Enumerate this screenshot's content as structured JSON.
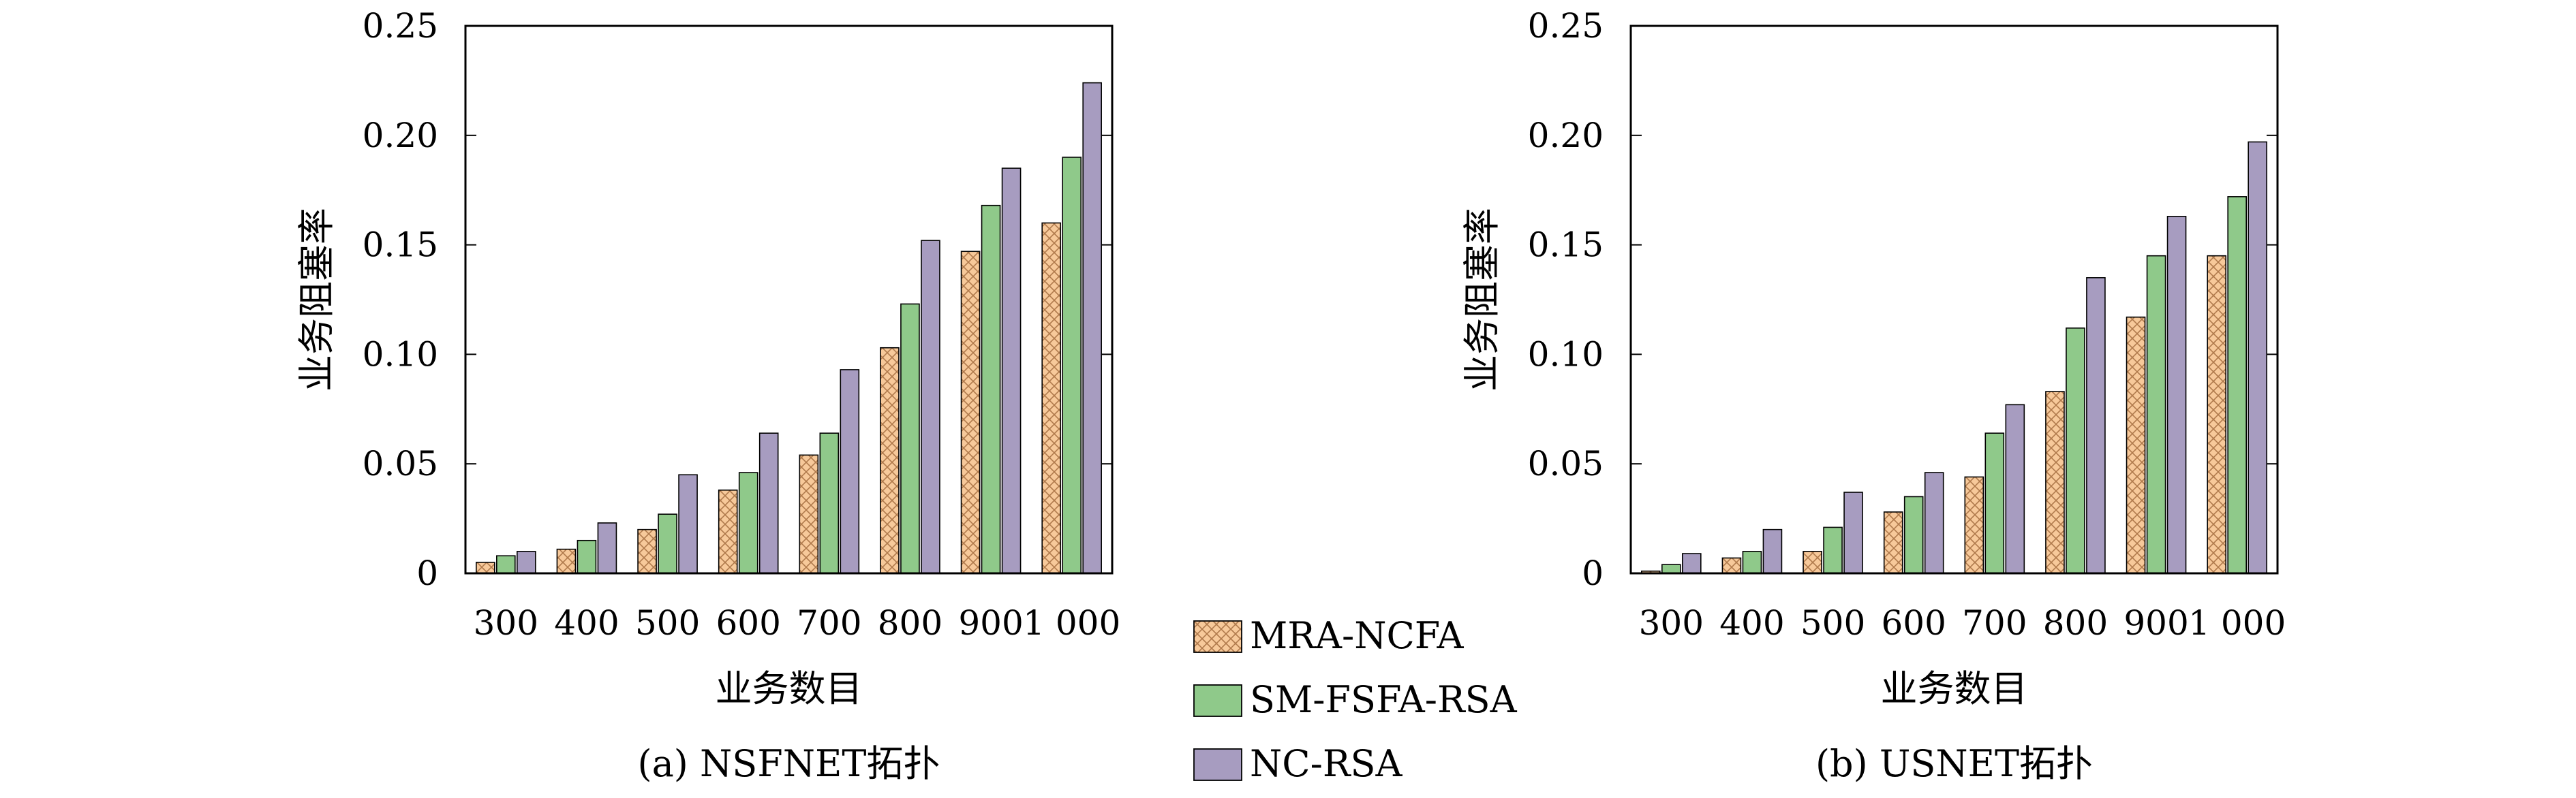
{
  "figure": {
    "legend": [
      {
        "name": "MRA-NCFA",
        "color": "#f7c99a",
        "pattern": "crosshatch"
      },
      {
        "name": "SM-FSFA-RSA",
        "color": "#8fc98a",
        "pattern": "solid"
      },
      {
        "name": "NC-RSA",
        "color": "#a79cc0",
        "pattern": "solid"
      }
    ]
  },
  "chart_data": [
    {
      "type": "bar",
      "caption": "(a) NSFNET拓扑",
      "xlabel": "业务数目",
      "ylabel": "业务阻塞率",
      "ylim": [
        0,
        0.25
      ],
      "yticks": [
        "0",
        "0.05",
        "0.10",
        "0.15",
        "0.20",
        "0.25"
      ],
      "categories": [
        "300",
        "400",
        "500",
        "600",
        "700",
        "800",
        "900",
        "1 000"
      ],
      "series": [
        {
          "name": "MRA-NCFA",
          "values": [
            0.005,
            0.011,
            0.02,
            0.038,
            0.054,
            0.103,
            0.147,
            0.16
          ]
        },
        {
          "name": "SM-FSFA-RSA",
          "values": [
            0.008,
            0.015,
            0.027,
            0.046,
            0.064,
            0.123,
            0.168,
            0.19
          ]
        },
        {
          "name": "NC-RSA",
          "values": [
            0.01,
            0.023,
            0.045,
            0.064,
            0.093,
            0.152,
            0.185,
            0.224
          ]
        }
      ]
    },
    {
      "type": "bar",
      "caption": "(b) USNET拓扑",
      "xlabel": "业务数目",
      "ylabel": "业务阻塞率",
      "ylim": [
        0,
        0.25
      ],
      "yticks": [
        "0",
        "0.05",
        "0.10",
        "0.15",
        "0.20",
        "0.25"
      ],
      "categories": [
        "300",
        "400",
        "500",
        "600",
        "700",
        "800",
        "900",
        "1 000"
      ],
      "series": [
        {
          "name": "MRA-NCFA",
          "values": [
            0.001,
            0.007,
            0.01,
            0.028,
            0.044,
            0.083,
            0.117,
            0.145
          ]
        },
        {
          "name": "SM-FSFA-RSA",
          "values": [
            0.004,
            0.01,
            0.021,
            0.035,
            0.064,
            0.112,
            0.145,
            0.172
          ]
        },
        {
          "name": "NC-RSA",
          "values": [
            0.009,
            0.02,
            0.037,
            0.046,
            0.077,
            0.135,
            0.163,
            0.197
          ]
        }
      ]
    }
  ]
}
